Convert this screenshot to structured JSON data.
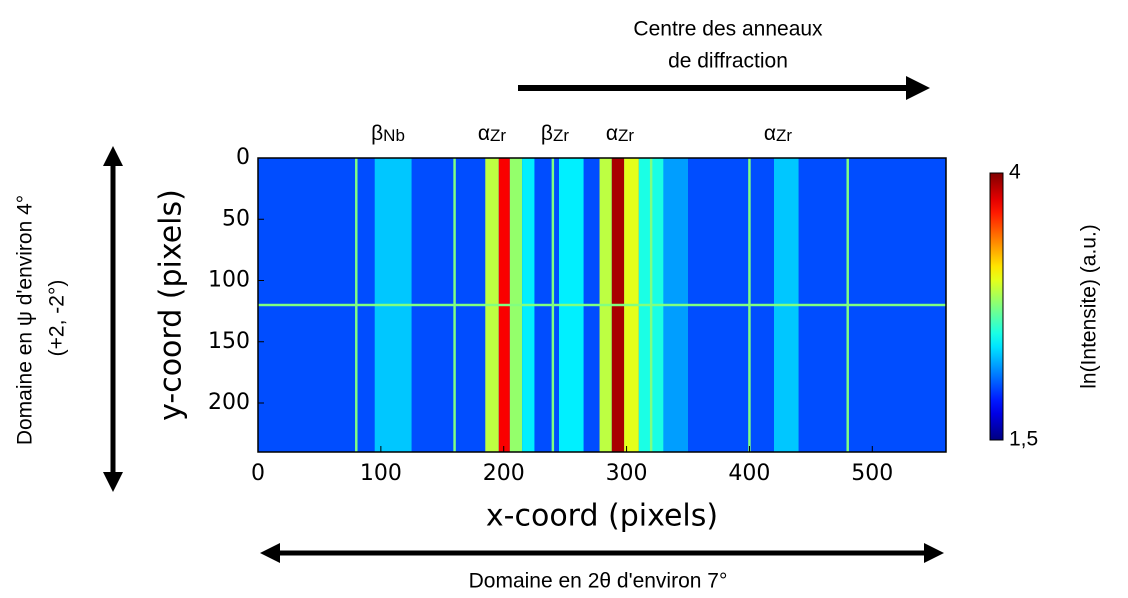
{
  "chart_data": {
    "type": "heatmap",
    "xlabel": "x-coord (pixels)",
    "ylabel": "y-coord (pixels)",
    "xlim": [
      0,
      560
    ],
    "ylim": [
      240,
      0
    ],
    "xticks": [
      0,
      100,
      200,
      300,
      400,
      500
    ],
    "yticks": [
      0,
      50,
      100,
      150,
      200
    ],
    "colormap": "jet",
    "background": 2.0,
    "columns": [
      {
        "x0": 95,
        "x1": 125,
        "value": 2.3
      },
      {
        "x0": 185,
        "x1": 196,
        "value": 2.9
      },
      {
        "x0": 196,
        "x1": 205,
        "value": 3.7
      },
      {
        "x0": 205,
        "x1": 215,
        "value": 2.8
      },
      {
        "x0": 215,
        "x1": 225,
        "value": 2.4
      },
      {
        "x0": 245,
        "x1": 265,
        "value": 2.4
      },
      {
        "x0": 278,
        "x1": 288,
        "value": 2.9
      },
      {
        "x0": 288,
        "x1": 298,
        "value": 3.9
      },
      {
        "x0": 298,
        "x1": 310,
        "value": 3.0
      },
      {
        "x0": 310,
        "x1": 330,
        "value": 2.5
      },
      {
        "x0": 330,
        "x1": 350,
        "value": 2.2
      },
      {
        "x0": 420,
        "x1": 440,
        "value": 2.3
      },
      {
        "x0": 79,
        "x1": 81,
        "value": 2.75
      },
      {
        "x0": 159,
        "x1": 161,
        "value": 2.75
      },
      {
        "x0": 239,
        "x1": 241,
        "value": 2.75
      },
      {
        "x0": 319,
        "x1": 321,
        "value": 2.75
      },
      {
        "x0": 399,
        "x1": 401,
        "value": 2.75
      },
      {
        "x0": 479,
        "x1": 481,
        "value": 2.75
      }
    ],
    "rows": [
      {
        "y0": 119,
        "y1": 121,
        "value": 2.75
      }
    ],
    "colorbar": {
      "label": "ln(Intensite) (a.u.)",
      "lim": [
        1.5,
        4
      ],
      "ticks": [
        {
          "value": 1.5,
          "label": "1,5"
        },
        4
      ]
    }
  },
  "annotations": {
    "top": [
      "Centre des anneaux",
      "de diffraction"
    ],
    "left": [
      "Domaine en ψ d'environ 4°",
      "(+2, -2°)"
    ],
    "bottom": "Domaine en 2θ d'environ 7°",
    "phases": [
      {
        "symbol": "β",
        "subscript": "Nb"
      },
      {
        "symbol": "α",
        "subscript": "Zr"
      },
      {
        "symbol": "β",
        "subscript": "Zr"
      },
      {
        "symbol": "α",
        "subscript": "Zr"
      },
      {
        "symbol": "α",
        "subscript": "Zr"
      }
    ]
  }
}
